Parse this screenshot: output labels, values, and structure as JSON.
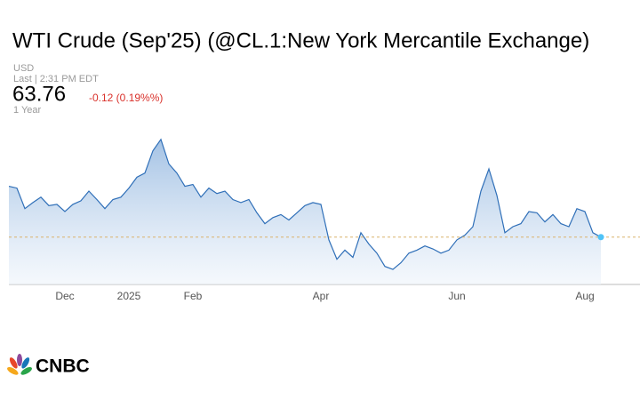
{
  "chart_data": {
    "type": "area",
    "title": "WTI Crude (Sep'25) (@CL.1:New York Mercantile Exchange)",
    "currency": "USD",
    "timestamp": "Last | 2:31 PM EDT",
    "last": 63.76,
    "change": "-0.12 (0.19%%)",
    "range": "1 Year",
    "logo": "CNBC",
    "color": "#2f6fb8",
    "categories": [
      null,
      null,
      null,
      null,
      null,
      null,
      null,
      "Dec",
      null,
      null,
      null,
      null,
      null,
      null,
      null,
      "2025",
      null,
      null,
      null,
      null,
      null,
      null,
      null,
      "Feb",
      null,
      null,
      null,
      null,
      null,
      null,
      null,
      null,
      null,
      null,
      null,
      null,
      null,
      null,
      null,
      "Apr",
      null,
      null,
      null,
      null,
      null,
      null,
      null,
      null,
      null,
      null,
      null,
      null,
      null,
      null,
      null,
      null,
      "Jun",
      null,
      null,
      null,
      null,
      null,
      null,
      null,
      null,
      null,
      null,
      null,
      null,
      null,
      null,
      null,
      "Aug",
      null,
      null
    ],
    "values": [
      72.2,
      71.9,
      68.5,
      69.5,
      70.4,
      69.0,
      69.2,
      68.0,
      69.2,
      69.8,
      71.4,
      70.0,
      68.5,
      70.0,
      70.4,
      71.9,
      73.7,
      74.4,
      78.1,
      80.0,
      75.9,
      74.4,
      72.2,
      72.5,
      70.4,
      71.9,
      71.0,
      71.4,
      70.0,
      69.5,
      70.0,
      67.8,
      66.0,
      67.0,
      67.5,
      66.6,
      67.8,
      69.0,
      69.5,
      69.2,
      63.3,
      60.1,
      61.6,
      60.4,
      64.5,
      62.6,
      61.1,
      58.9,
      58.4,
      59.5,
      61.1,
      61.6,
      62.3,
      61.8,
      61.1,
      61.6,
      63.3,
      64.1,
      65.5,
      71.4,
      75.1,
      70.7,
      64.5,
      65.5,
      66.0,
      68.0,
      67.8,
      66.3,
      67.5,
      66.0,
      65.5,
      68.5,
      68.0,
      64.5,
      63.76
    ],
    "ylim": [
      55.9,
      81.0
    ]
  }
}
